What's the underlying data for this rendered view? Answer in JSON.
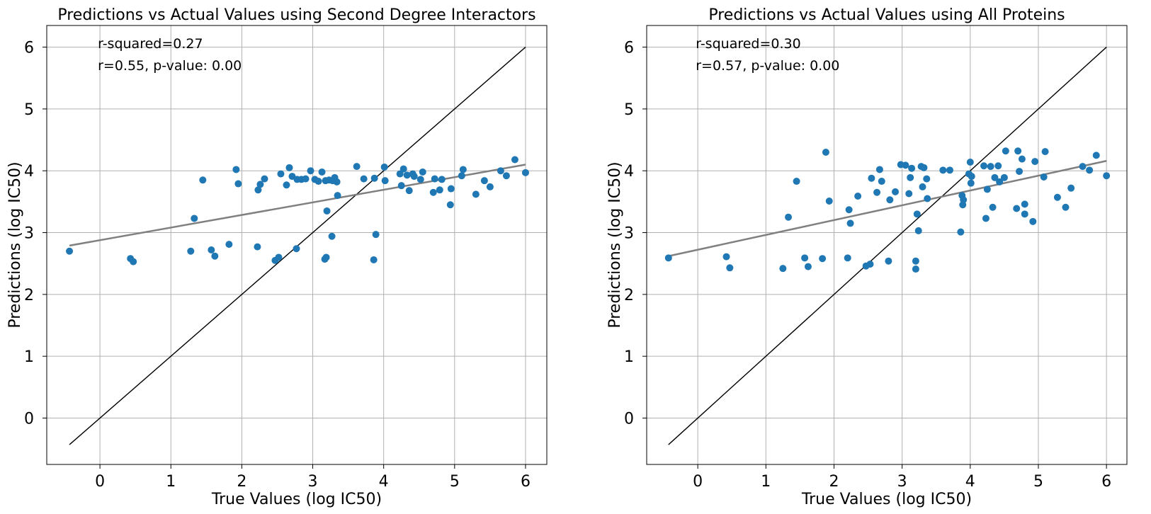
{
  "chart_data": [
    {
      "type": "scatter",
      "title": "Predictions vs Actual Values using Second Degree Interactors",
      "xlabel": "True Values (log IC50)",
      "ylabel": "Predictions (log IC50)",
      "xlim": [
        -0.75,
        6.3
      ],
      "ylim": [
        -0.75,
        6.35
      ],
      "xticks": [
        0,
        1,
        2,
        3,
        4,
        5,
        6
      ],
      "yticks": [
        0,
        1,
        2,
        3,
        4,
        5,
        6
      ],
      "grid": true,
      "annotations": [
        "r-squared=0.27",
        "r=0.55, p-value: 0.00"
      ],
      "identity_line": {
        "from": -0.43,
        "to": 6.0,
        "color": "#000000"
      },
      "fit_line": {
        "x": [
          -0.43,
          6.0
        ],
        "y": [
          2.79,
          4.1
        ],
        "color": "#808080"
      },
      "series": [
        {
          "color": "#1f77b4",
          "x": [
            -0.43,
            0.43,
            0.47,
            1.28,
            1.33,
            1.45,
            1.57,
            1.62,
            1.82,
            1.92,
            1.95,
            2.22,
            2.23,
            2.26,
            2.32,
            2.47,
            2.52,
            2.55,
            2.63,
            2.67,
            2.71,
            2.77,
            2.78,
            2.84,
            2.9,
            2.97,
            3.03,
            3.08,
            3.13,
            3.19,
            3.17,
            3.18,
            3.2,
            3.23,
            3.27,
            3.28,
            3.31,
            3.34,
            3.35,
            3.62,
            3.72,
            3.86,
            3.87,
            3.89,
            4.01,
            4.02,
            4.23,
            4.25,
            4.28,
            4.33,
            4.36,
            4.41,
            4.43,
            4.52,
            4.55,
            4.7,
            4.72,
            4.79,
            4.82,
            4.94,
            4.95,
            5.1,
            5.12,
            5.3,
            5.42,
            5.5,
            5.65,
            5.73,
            5.85,
            6.0
          ],
          "y": [
            2.7,
            2.58,
            2.53,
            2.7,
            3.23,
            3.85,
            2.72,
            2.62,
            2.81,
            4.02,
            3.79,
            2.77,
            3.69,
            3.78,
            3.87,
            2.55,
            2.6,
            3.95,
            3.77,
            4.05,
            3.91,
            2.74,
            3.86,
            3.86,
            3.87,
            4.0,
            3.86,
            3.83,
            3.98,
            2.6,
            2.57,
            3.84,
            3.35,
            3.85,
            2.94,
            3.84,
            3.89,
            3.82,
            3.6,
            4.07,
            3.87,
            2.56,
            3.88,
            2.97,
            4.06,
            3.84,
            3.95,
            3.76,
            4.03,
            3.93,
            3.68,
            3.95,
            3.91,
            3.86,
            3.98,
            3.65,
            3.87,
            3.69,
            3.86,
            3.45,
            3.71,
            3.92,
            4.02,
            3.62,
            3.84,
            3.74,
            4.0,
            3.92,
            4.18,
            3.97
          ]
        }
      ]
    },
    {
      "type": "scatter",
      "title": "Predictions vs Actual Values using All Proteins",
      "xlabel": "True Values (log IC50)",
      "ylabel": "Predictions (log IC50)",
      "xlim": [
        -0.75,
        6.3
      ],
      "ylim": [
        -0.75,
        6.35
      ],
      "xticks": [
        0,
        1,
        2,
        3,
        4,
        5,
        6
      ],
      "yticks": [
        0,
        1,
        2,
        3,
        4,
        5,
        6
      ],
      "grid": true,
      "annotations": [
        "r-squared=0.30",
        "r=0.57, p-value: 0.00"
      ],
      "identity_line": {
        "from": -0.43,
        "to": 6.0,
        "color": "#000000"
      },
      "fit_line": {
        "x": [
          -0.43,
          6.0
        ],
        "y": [
          2.62,
          4.16
        ],
        "color": "#808080"
      },
      "series": [
        {
          "color": "#1f77b4",
          "x": [
            -0.43,
            0.42,
            0.47,
            1.25,
            1.33,
            1.45,
            1.57,
            1.62,
            1.83,
            1.88,
            1.93,
            2.2,
            2.22,
            2.24,
            2.35,
            2.47,
            2.53,
            2.55,
            2.63,
            2.67,
            2.7,
            2.8,
            2.82,
            2.9,
            2.98,
            3.05,
            3.1,
            3.12,
            3.14,
            3.2,
            3.2,
            3.22,
            3.24,
            3.28,
            3.3,
            3.32,
            3.36,
            3.37,
            3.6,
            3.7,
            3.86,
            3.88,
            3.89,
            3.9,
            3.98,
            4.0,
            4.01,
            4.02,
            4.2,
            4.23,
            4.25,
            4.3,
            4.33,
            4.36,
            4.41,
            4.43,
            4.5,
            4.52,
            4.68,
            4.7,
            4.72,
            4.76,
            4.8,
            4.8,
            4.92,
            4.95,
            5.08,
            5.1,
            5.28,
            5.4,
            5.48,
            5.65,
            5.75,
            5.85,
            6.0
          ],
          "y": [
            2.59,
            2.61,
            2.43,
            2.42,
            3.25,
            3.83,
            2.59,
            2.45,
            2.58,
            4.3,
            3.51,
            2.59,
            3.37,
            3.15,
            3.59,
            2.46,
            2.49,
            3.88,
            3.65,
            4.02,
            3.83,
            2.54,
            3.53,
            3.66,
            4.1,
            4.09,
            3.63,
            3.89,
            4.04,
            2.41,
            2.54,
            3.3,
            3.03,
            4.07,
            3.74,
            4.05,
            3.87,
            3.55,
            4.01,
            4.01,
            3.01,
            3.6,
            3.45,
            3.53,
            3.95,
            4.14,
            3.8,
            3.91,
            4.08,
            3.23,
            3.7,
            4.07,
            3.41,
            3.89,
            4.08,
            3.82,
            3.89,
            4.32,
            3.39,
            4.32,
            3.99,
            4.19,
            3.46,
            3.3,
            3.18,
            4.15,
            3.9,
            4.31,
            3.57,
            3.41,
            3.72,
            4.07,
            4.01,
            4.25,
            3.92
          ]
        }
      ]
    }
  ]
}
